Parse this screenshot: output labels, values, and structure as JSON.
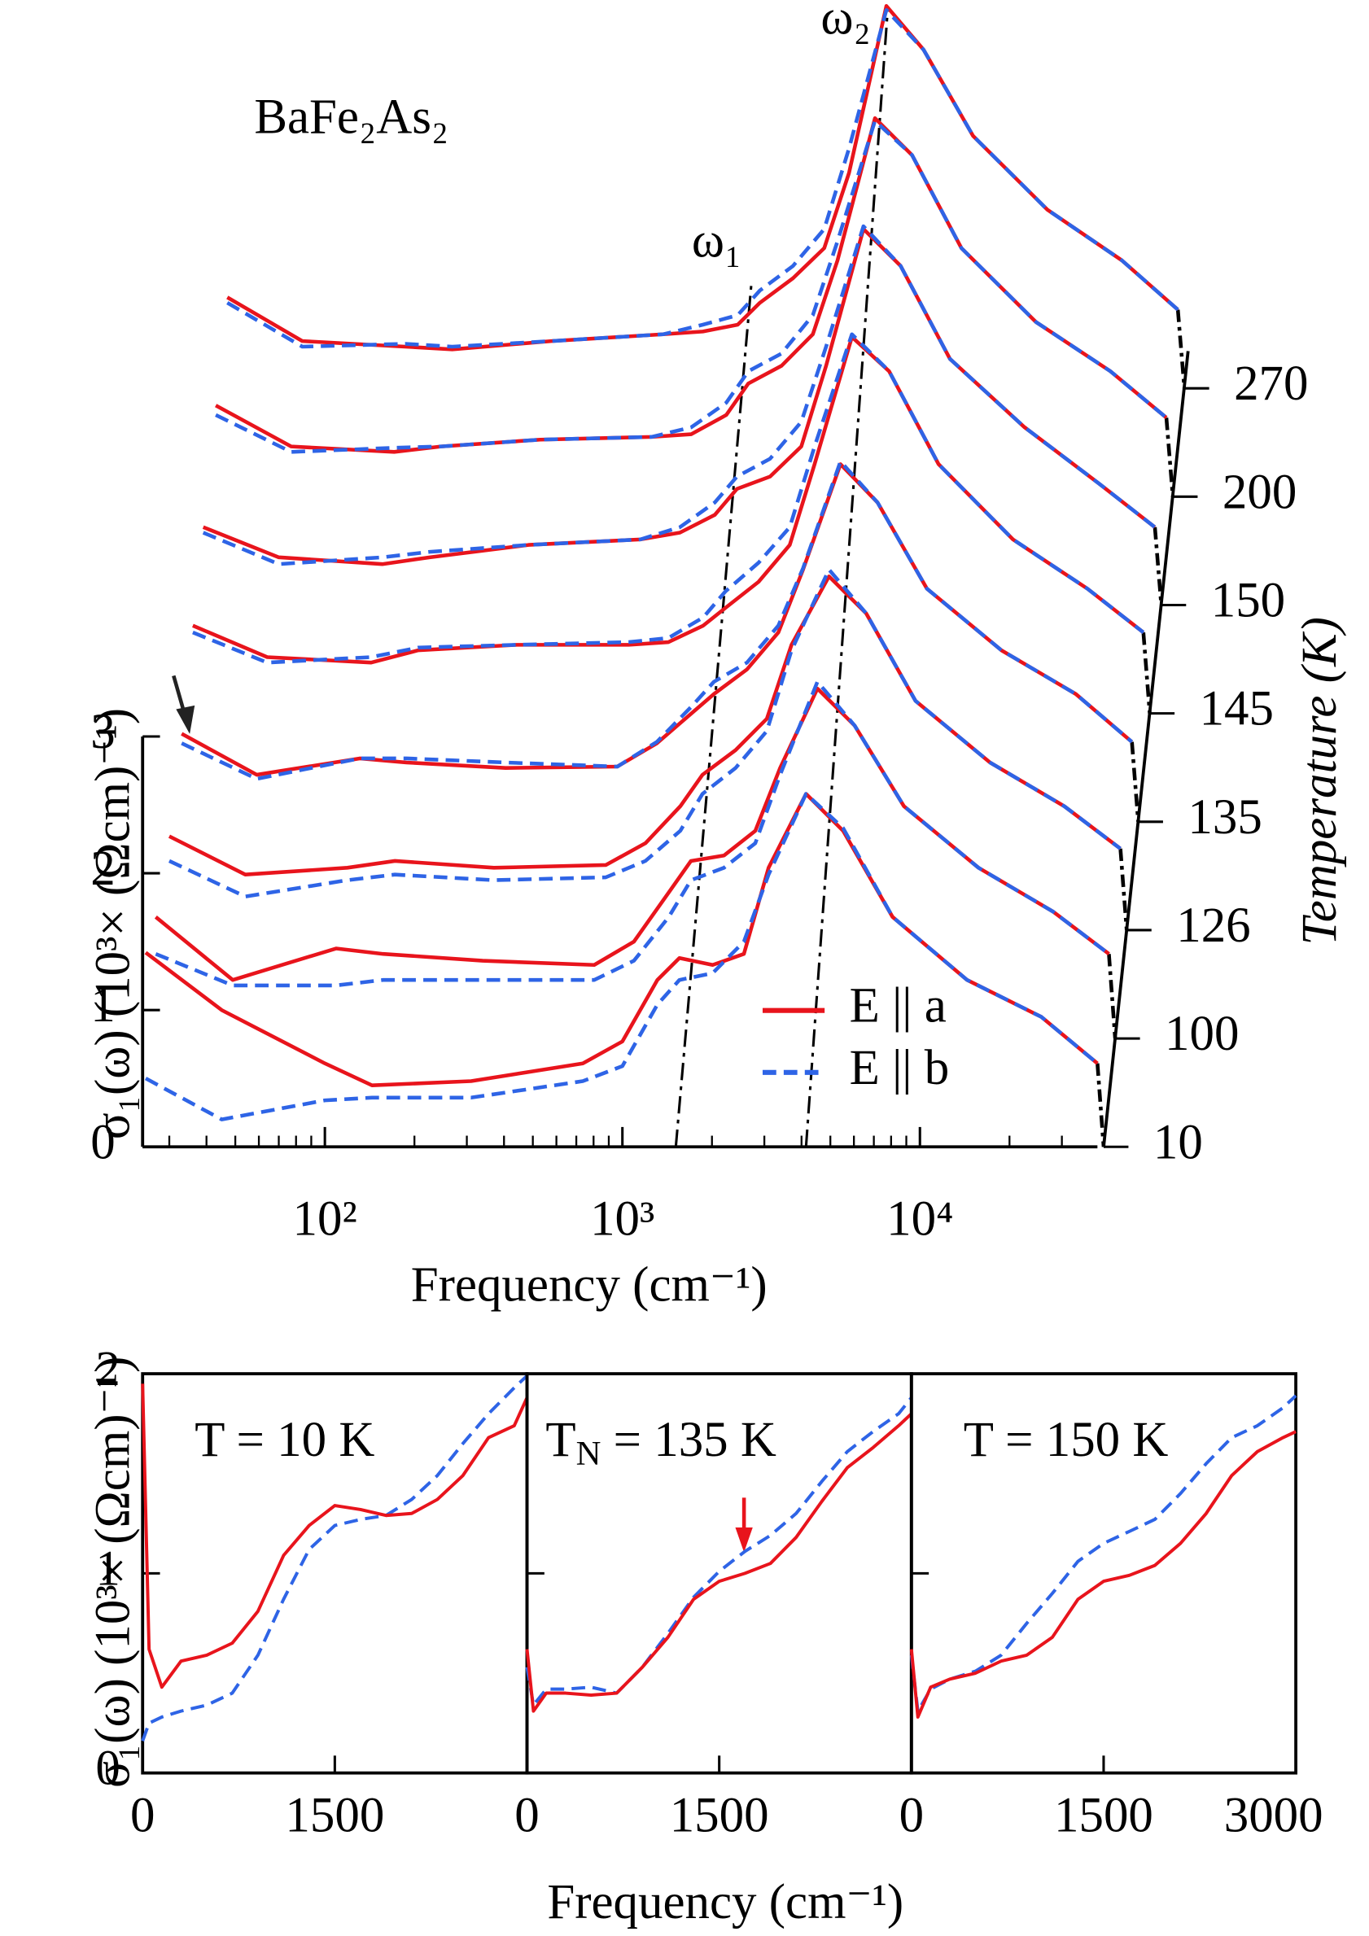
{
  "chart_data": [
    {
      "type": "waterfall-line",
      "title": "BaFe₂As₂",
      "xlabel": "Frequency (cm⁻¹)",
      "ylabel": "σ₁(ω) (10³× (Ωcm)⁻¹)",
      "zlabel": "Temperature (K)",
      "annotations": [
        "ω₁",
        "ω₂"
      ],
      "xscale": "log",
      "xlim": [
        24.4,
        39500
      ],
      "xticks": [
        {
          "value": 100,
          "label": "10²"
        },
        {
          "value": 1000,
          "label": "10³"
        },
        {
          "value": 10000,
          "label": "10⁴"
        }
      ],
      "x_minor_ticks": [
        30,
        40,
        50,
        60,
        70,
        80,
        90,
        200,
        300,
        400,
        500,
        600,
        700,
        800,
        900,
        2000,
        3000,
        4000,
        5000,
        6000,
        7000,
        8000,
        9000,
        20000,
        30000
      ],
      "ylim": [
        0,
        3
      ],
      "yticks": [
        0,
        1,
        2,
        3
      ],
      "legend": "lower right",
      "series_styles": [
        {
          "name": "E || a",
          "color": "#e8141c",
          "dash": "solid"
        },
        {
          "name": "E || b",
          "color": "#2e64e6",
          "dash": "dashed"
        }
      ],
      "curves": [
        {
          "temperature": 10,
          "x": [
            25,
            45,
            100,
            144,
            310,
            736,
            1000,
            1310,
            1555,
            2010,
            2560,
            3100,
            4140,
            5520,
            8090,
            14400,
            25600,
            39500
          ],
          "a": [
            1.42,
            1.0,
            0.61,
            0.45,
            0.48,
            0.61,
            0.77,
            1.22,
            1.38,
            1.33,
            1.41,
            2.04,
            2.58,
            2.31,
            1.68,
            1.22,
            0.95,
            0.61
          ],
          "b": [
            0.5,
            0.2,
            0.34,
            0.36,
            0.36,
            0.48,
            0.59,
            1.04,
            1.22,
            1.27,
            1.5,
            1.99,
            2.58,
            2.33,
            1.68,
            1.22,
            0.95,
            0.61
          ]
        },
        {
          "temperature": 100,
          "x": [
            27,
            49,
            109,
            157,
            339,
            804,
            1093,
            1432,
            1700,
            2197,
            2798,
            3388,
            4525,
            6033,
            8842,
            15740,
            27980,
            43170
          ],
          "a": [
            1.68,
            1.22,
            1.45,
            1.41,
            1.36,
            1.33,
            1.5,
            1.86,
            2.09,
            2.13,
            2.31,
            2.77,
            3.35,
            3.08,
            2.49,
            2.04,
            1.72,
            1.41
          ],
          "b": [
            1.41,
            1.18,
            1.18,
            1.22,
            1.22,
            1.22,
            1.36,
            1.68,
            1.95,
            2.04,
            2.22,
            2.72,
            3.4,
            3.08,
            2.49,
            2.04,
            1.72,
            1.41
          ]
        },
        {
          "temperature": 126,
          "x": [
            30,
            54,
            119,
            172,
            370,
            879,
            1195,
            1565,
            1858,
            2401,
            3058,
            3703,
            4946,
            6594,
            9664,
            17200,
            30580,
            47190
          ],
          "a": [
            2.27,
            1.99,
            2.04,
            2.09,
            2.04,
            2.06,
            2.22,
            2.49,
            2.72,
            2.9,
            3.13,
            3.67,
            4.17,
            3.9,
            3.26,
            2.81,
            2.49,
            2.18
          ],
          "b": [
            2.09,
            1.83,
            1.95,
            1.99,
            1.95,
            1.97,
            2.09,
            2.31,
            2.58,
            2.77,
            3.04,
            3.63,
            4.22,
            3.9,
            3.26,
            2.81,
            2.49,
            2.18
          ]
        },
        {
          "temperature": 135,
          "x": [
            33,
            59,
            131,
            188,
            405,
            961,
            1306,
            1710,
            2030,
            2624,
            3343,
            4048,
            5406,
            7207,
            10560,
            18800,
            33430,
            51580
          ],
          "a": [
            3.02,
            2.72,
            2.84,
            2.81,
            2.77,
            2.78,
            2.95,
            3.17,
            3.31,
            3.49,
            3.76,
            4.22,
            4.99,
            4.71,
            4.08,
            3.63,
            3.31,
            2.96
          ],
          "b": [
            2.95,
            2.69,
            2.84,
            2.84,
            2.81,
            2.78,
            2.96,
            3.22,
            3.4,
            3.54,
            3.81,
            4.23,
            5.01,
            4.71,
            4.08,
            3.63,
            3.31,
            2.96
          ]
        },
        {
          "temperature": 145,
          "x": [
            36,
            64,
            143,
            206,
            442,
            1050,
            1427,
            1870,
            2219,
            2869,
            3654,
            4424,
            5909,
            7878,
            11550,
            20550,
            36540,
            56370
          ],
          "a": [
            3.81,
            3.58,
            3.54,
            3.63,
            3.67,
            3.67,
            3.69,
            3.81,
            3.94,
            4.13,
            4.4,
            4.99,
            5.92,
            5.67,
            4.99,
            4.44,
            4.08,
            3.76
          ],
          "b": [
            3.76,
            3.54,
            3.58,
            3.65,
            3.67,
            3.69,
            3.72,
            3.87,
            4.06,
            4.27,
            4.53,
            5.12,
            5.94,
            5.67,
            4.99,
            4.44,
            4.08,
            3.76
          ]
        },
        {
          "temperature": 150,
          "x": [
            39,
            70,
            156,
            225,
            484,
            1148,
            1560,
            2043,
            2426,
            3135,
            3993,
            4836,
            6458,
            8611,
            12620,
            22460,
            39930,
            61620
          ],
          "a": [
            4.53,
            4.31,
            4.26,
            4.31,
            4.4,
            4.44,
            4.49,
            4.62,
            4.81,
            4.9,
            5.12,
            5.71,
            6.71,
            6.44,
            5.76,
            5.26,
            4.85,
            4.53
          ],
          "b": [
            4.49,
            4.26,
            4.31,
            4.35,
            4.4,
            4.44,
            4.53,
            4.71,
            4.9,
            5.03,
            5.3,
            5.85,
            6.73,
            6.44,
            5.76,
            5.26,
            4.85,
            4.53
          ]
        },
        {
          "temperature": 200,
          "x": [
            43,
            77,
            171,
            246,
            529,
            1255,
            1705,
            2234,
            2651,
            3427,
            4365,
            5286,
            7059,
            9412,
            13790,
            24550,
            43650,
            67350
          ],
          "a": [
            5.42,
            5.12,
            5.08,
            5.12,
            5.17,
            5.19,
            5.21,
            5.35,
            5.58,
            5.71,
            5.94,
            6.48,
            7.52,
            7.25,
            6.57,
            6.03,
            5.67,
            5.33
          ],
          "b": [
            5.35,
            5.08,
            5.11,
            5.12,
            5.17,
            5.19,
            5.26,
            5.44,
            5.67,
            5.8,
            6.08,
            6.62,
            7.5,
            7.25,
            6.57,
            6.03,
            5.67,
            5.33
          ]
        },
        {
          "temperature": 270,
          "x": [
            47,
            84,
            186,
            268,
            578,
            1372,
            1864,
            2441,
            2898,
            3746,
            4771,
            5777,
            7715,
            10290,
            15080,
            26840,
            47710,
            73610
          ],
          "a": [
            6.21,
            5.89,
            5.85,
            5.83,
            5.89,
            5.94,
            5.96,
            6.01,
            6.17,
            6.35,
            6.57,
            7.12,
            8.34,
            8.02,
            7.39,
            6.85,
            6.48,
            6.12
          ],
          "b": [
            6.17,
            5.85,
            5.87,
            5.85,
            5.89,
            5.94,
            6.01,
            6.08,
            6.26,
            6.44,
            6.71,
            7.3,
            8.31,
            8.02,
            7.39,
            6.85,
            6.48,
            6.12
          ]
        }
      ]
    },
    {
      "type": "panels",
      "xlabel": "Frequency (cm⁻¹)",
      "ylabel": "σ₁(ω) (10³× (Ωcm)⁻¹)",
      "xlim": [
        0,
        3000
      ],
      "ylim": [
        0,
        2
      ],
      "yticks": [
        0,
        1,
        2
      ],
      "x": [
        0,
        50,
        150,
        300,
        500,
        700,
        900,
        1100,
        1300,
        1500,
        1700,
        1900,
        2100,
        2300,
        2500,
        2700,
        2900,
        3000
      ],
      "panels": [
        {
          "title": "T = 10 K",
          "xticks": [
            0,
            1500
          ],
          "a": [
            1.95,
            0.62,
            0.43,
            0.56,
            0.59,
            0.65,
            0.81,
            1.09,
            1.24,
            1.34,
            1.32,
            1.29,
            1.3,
            1.37,
            1.49,
            1.68,
            1.74,
            1.88
          ],
          "b": [
            0.16,
            0.25,
            0.28,
            0.31,
            0.34,
            0.4,
            0.59,
            0.87,
            1.12,
            1.24,
            1.27,
            1.29,
            1.37,
            1.49,
            1.65,
            1.8,
            1.93,
            1.99
          ]
        },
        {
          "title": {
            "main": "T",
            "sub": "N",
            "rest": " = 135 K"
          },
          "xticks": [
            0,
            1500
          ],
          "a": [
            0.62,
            0.31,
            0.4,
            0.4,
            0.39,
            0.4,
            0.53,
            0.68,
            0.87,
            0.96,
            1.0,
            1.05,
            1.18,
            1.36,
            1.53,
            1.63,
            1.74,
            1.8
          ],
          "b": [
            0.53,
            0.34,
            0.42,
            0.42,
            0.43,
            0.4,
            0.53,
            0.7,
            0.88,
            1.01,
            1.11,
            1.19,
            1.3,
            1.46,
            1.61,
            1.71,
            1.8,
            1.88
          ]
        },
        {
          "title": "T = 150 K",
          "xticks": [
            0,
            1500,
            3000
          ],
          "a": [
            0.62,
            0.28,
            0.43,
            0.47,
            0.5,
            0.56,
            0.59,
            0.68,
            0.87,
            0.96,
            0.99,
            1.04,
            1.15,
            1.3,
            1.49,
            1.61,
            1.68,
            1.71
          ],
          "b": [
            0.59,
            0.31,
            0.42,
            0.47,
            0.51,
            0.59,
            0.75,
            0.9,
            1.06,
            1.15,
            1.21,
            1.27,
            1.4,
            1.55,
            1.68,
            1.74,
            1.83,
            1.89
          ]
        }
      ]
    }
  ]
}
